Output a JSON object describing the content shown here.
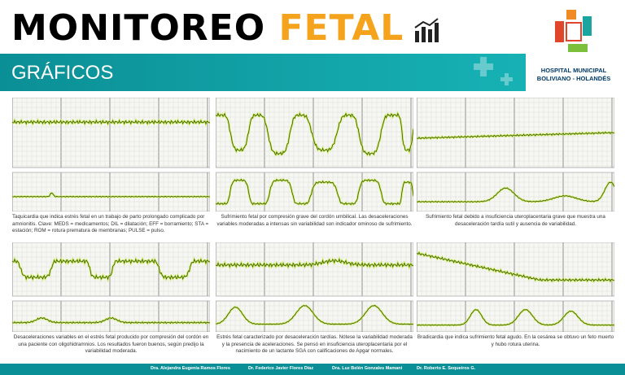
{
  "header": {
    "title_main": "MONITOREO",
    "title_accent": "FETAL",
    "subtitle": "GRÁFICOS",
    "hospital": [
      "HOSPITAL MUNICIPAL",
      "BOLIVIANO - HOLANDÉS"
    ]
  },
  "panels": [
    {
      "caption": "Taquicardia que indica estrés fetal en un trabajo de parto prolongado complicado por amnionitis. Clave: MEDS = medicamentos; DIL = dilatación; EFF = borramiento; STA = estación; ROM = rotura prematura de membranas; PULSE = pulso."
    },
    {
      "caption": "Sufrimiento fetal por compresión grave del cordón umbilical. Las desaceleraciones variables moderadas a intensas sin variabilidad son indicador ominoso de sufrimiento."
    },
    {
      "caption": "Sufrimiento fetal debido a insuficiencia uteroplacentaria grave que muestra una desaceleración tardía sutil y ausencia de variabilidad."
    },
    {
      "caption": "Desaceleraciones variables en el estrés fetal producido por compresión del cordón en una paciente con oligohidramnios. Los resultados fueron buenos, según predijo la variabilidad moderada."
    },
    {
      "caption": "Estrés fetal caracterizado por desaceleración tardías. Nótese la variabilidad moderada y la presencia de aceleraciones. Se pensó en insuficiencia uteroplacentaria por el nacimiento de un lactante SGA con calificaciones de Apgar normales."
    },
    {
      "caption": "Bradicardia que indica sufrimiento fetal agudo. En la cesárea se obtuvo un feto muerto y hubo rotura uterina."
    }
  ],
  "footer": {
    "authors": [
      "Dra. Alejandra Eugenia Ramos Flores",
      "Dr. Federico Javier Flores Díaz",
      "Dra. Luz Belén Gonzales Mamani",
      "Dr. Roberto E. Sequeiros G."
    ]
  }
}
